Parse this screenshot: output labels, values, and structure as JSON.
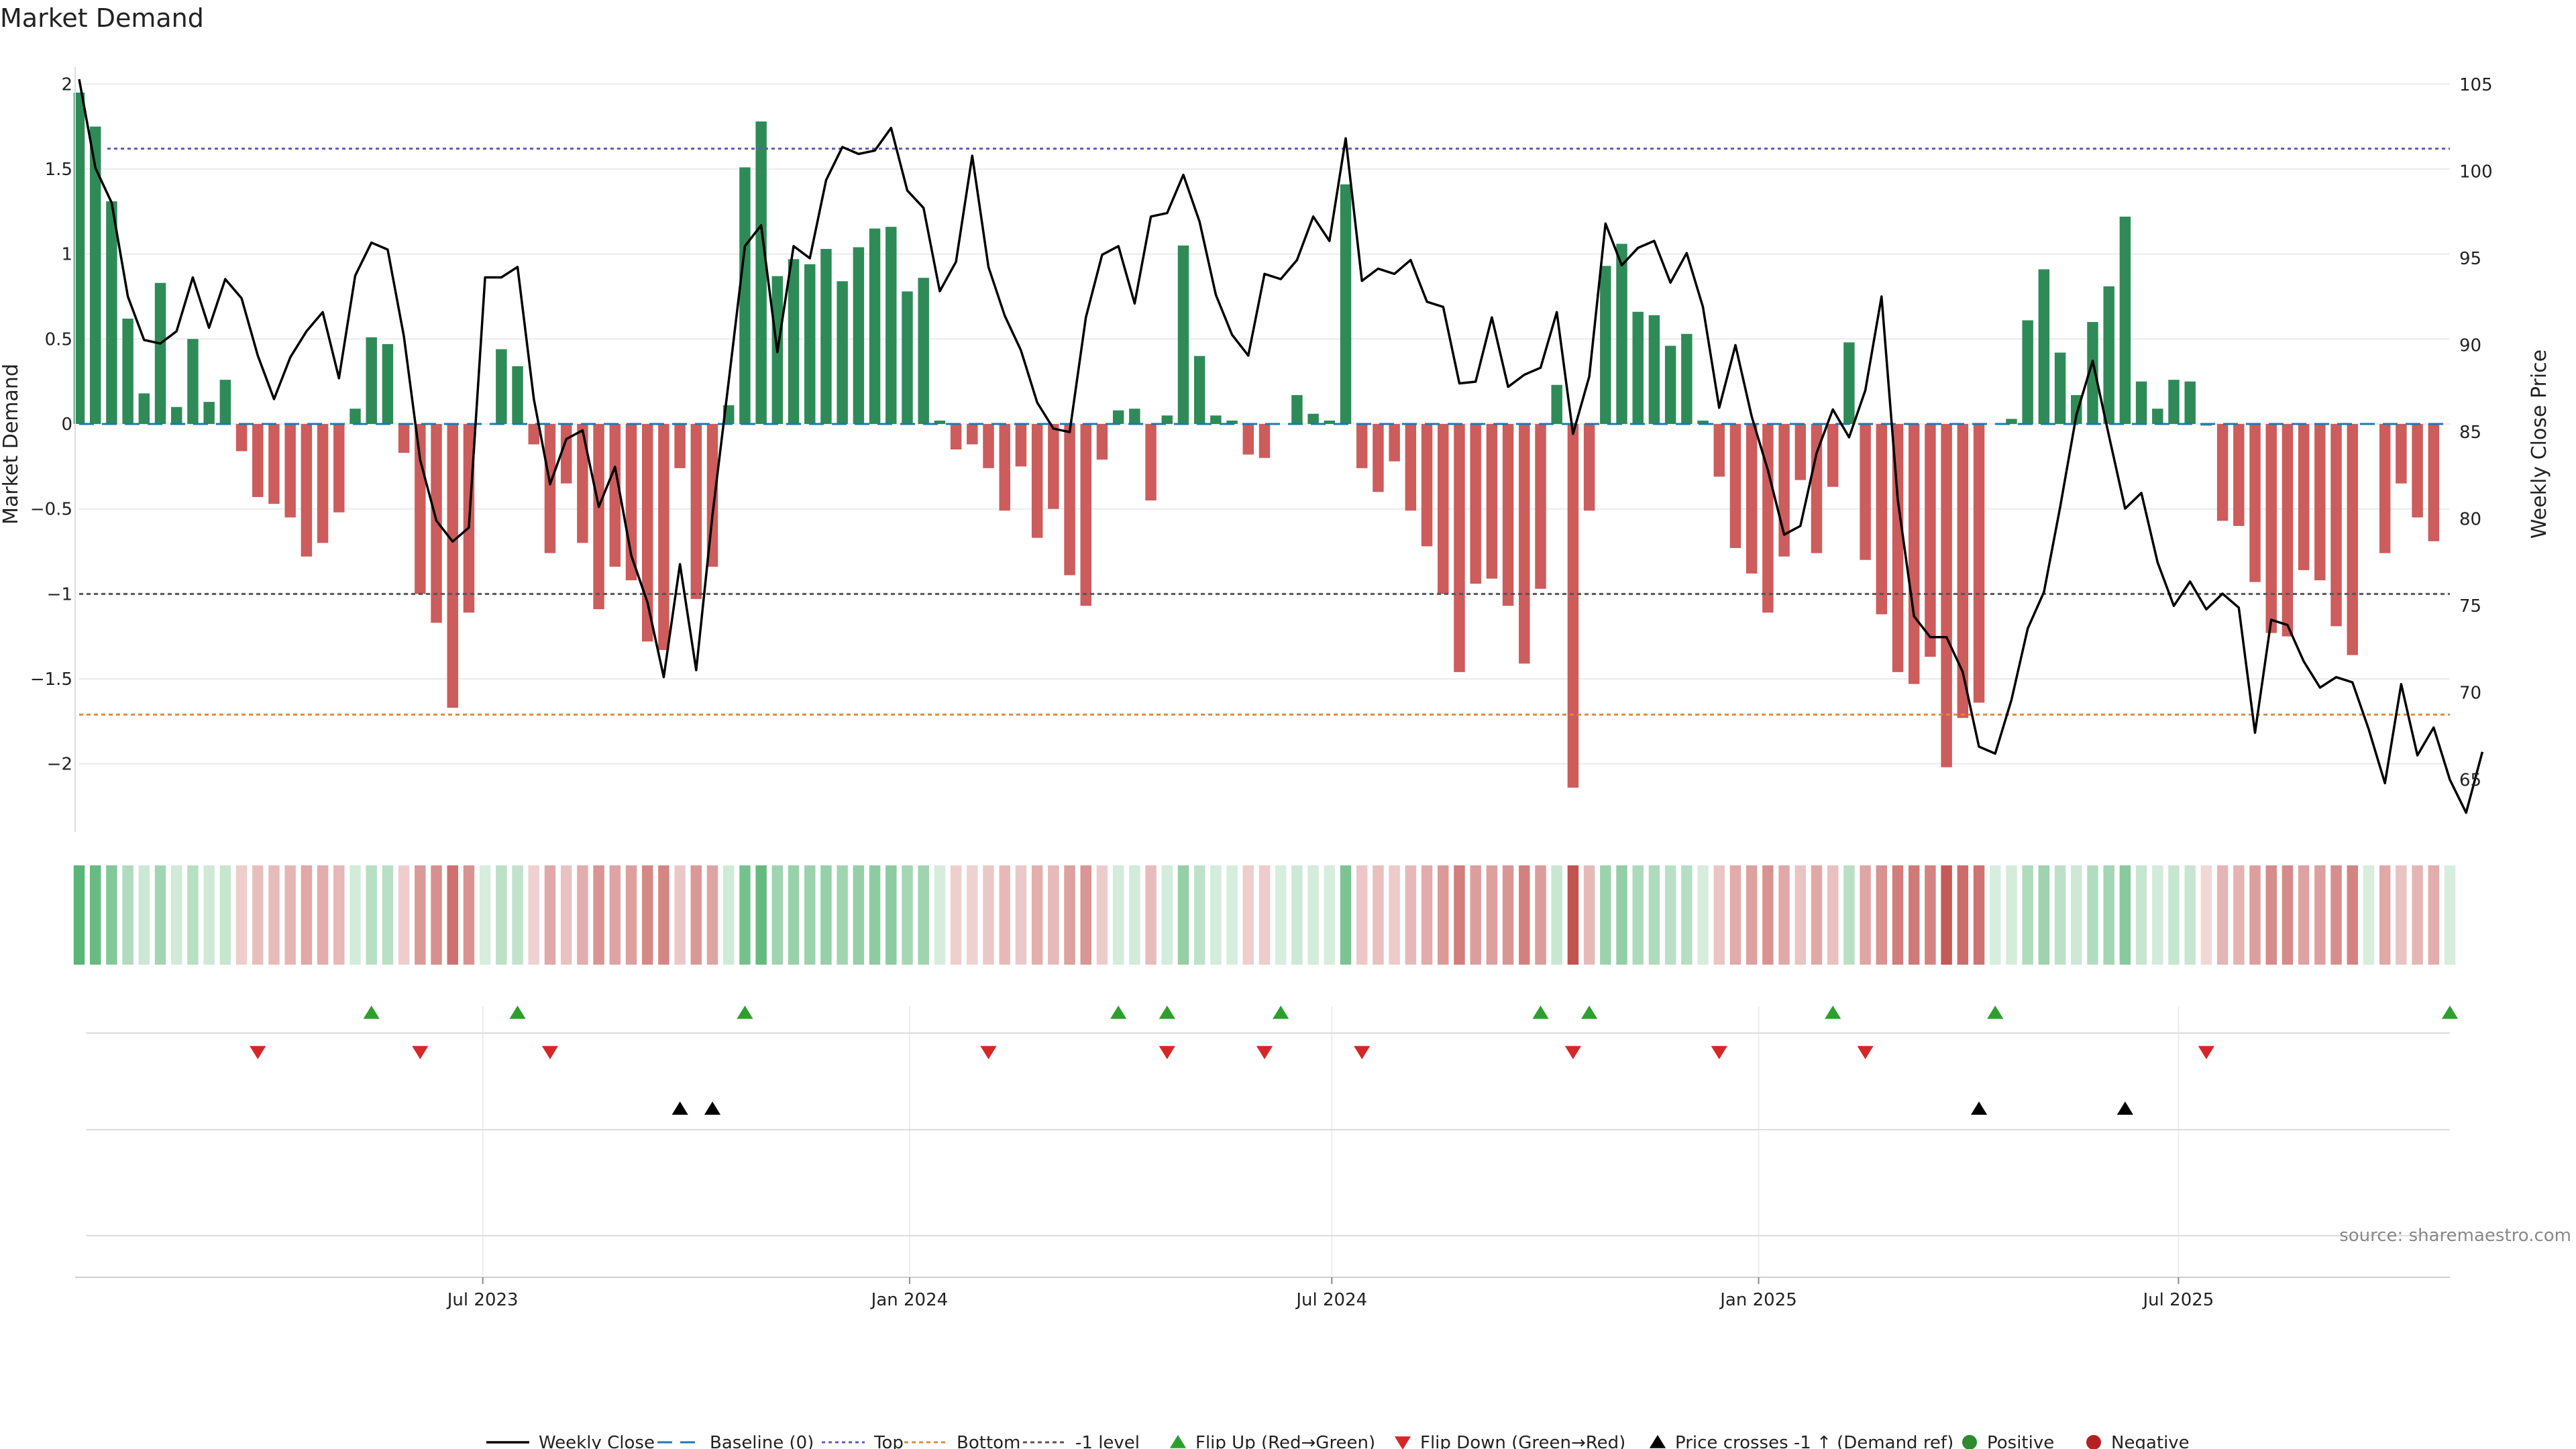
{
  "title": "Market Demand",
  "source_label": "source: sharemaestro.com",
  "chart_data": {
    "type": "bar+line",
    "ylabel_left": "Market Demand",
    "ylabel_right": "Weekly Close Price",
    "ylim_left": [
      -2.4,
      2.1
    ],
    "ylim_right": [
      62,
      106
    ],
    "yticks_left": [
      2,
      1.5,
      1,
      0.5,
      0,
      -0.5,
      -1,
      -1.5,
      -2
    ],
    "yticks_left_labels": [
      "2",
      "1.5",
      "1",
      "0.5",
      "0",
      "−0.5",
      "−1",
      "−1.5",
      "−2"
    ],
    "yticks_right": [
      105,
      100,
      95,
      90,
      85,
      80,
      75,
      70,
      65
    ],
    "x_start": "2023-01-08",
    "x_end": "2025-10-26",
    "xticks": [
      {
        "date": "2023-07-01",
        "label": "Jul 2023"
      },
      {
        "date": "2024-01-01",
        "label": "Jan 2024"
      },
      {
        "date": "2024-07-01",
        "label": "Jul 2024"
      },
      {
        "date": "2025-01-01",
        "label": "Jan 2025"
      },
      {
        "date": "2025-07-01",
        "label": "Jul 2025"
      }
    ],
    "levels": {
      "top": 1.62,
      "bottom": -1.71,
      "minus_one": -1.0,
      "baseline": 0
    },
    "colors": {
      "positive": "#2e8b57",
      "negative": "#cd5c5c",
      "price": "#000000",
      "top": "#5b5bb8",
      "bottom": "#e08a3c",
      "minus_one": "#555555",
      "baseline": "#1f77b4",
      "flip_up": "#2ca02c",
      "flip_down": "#d62728"
    },
    "series": [
      {
        "name": "Market Demand",
        "values": [
          1.95,
          1.75,
          1.31,
          0.62,
          0.18,
          0.83,
          0.1,
          0.5,
          0.13,
          0.26,
          -0.16,
          -0.43,
          -0.47,
          -0.55,
          -0.78,
          -0.7,
          -0.52,
          0.09,
          0.51,
          0.47,
          -0.17,
          -1.0,
          -1.17,
          -1.67,
          -1.11,
          0,
          0.44,
          0.34,
          -0.12,
          -0.76,
          -0.35,
          -0.7,
          -1.09,
          -0.84,
          -0.92,
          -1.28,
          -1.33,
          -0.26,
          -1.03,
          -0.84,
          0.11,
          1.51,
          1.78,
          0.87,
          0.97,
          0.94,
          1.03,
          0.84,
          1.04,
          1.15,
          1.16,
          0.78,
          0.86,
          0.02,
          -0.15,
          -0.12,
          -0.26,
          -0.51,
          -0.25,
          -0.67,
          -0.5,
          -0.89,
          -1.07,
          -0.21,
          0.08,
          0.09,
          -0.45,
          0.05,
          1.05,
          0.4,
          0.05,
          0.02,
          -0.18,
          -0.2,
          0.0,
          0.17,
          0.06,
          0.02,
          1.41,
          -0.26,
          -0.4,
          -0.22,
          -0.51,
          -0.72,
          -1.0,
          -1.46,
          -0.94,
          -0.91,
          -1.07,
          -1.41,
          -0.97,
          0.23,
          -2.14,
          -0.51,
          0.93,
          1.06,
          0.66,
          0.64,
          0.46,
          0.53,
          0.02,
          -0.31,
          -0.73,
          -0.88,
          -1.11,
          -0.78,
          -0.33,
          -0.76,
          -0.37,
          0.48,
          -0.8,
          -1.12,
          -1.46,
          -1.53,
          -1.37,
          -2.02,
          -1.73,
          -1.64,
          0.0,
          0.03,
          0.61,
          0.91,
          0.42,
          0.17,
          0.6,
          0.81,
          1.22,
          0.25,
          0.09,
          0.26,
          0.25,
          -0.01,
          -0.57,
          -0.6,
          -0.93,
          -1.23,
          -1.25,
          -0.86,
          -0.92,
          -1.19,
          -1.36,
          0.0,
          -0.76,
          -0.35,
          -0.55,
          -0.69,
          0.0
        ]
      },
      {
        "name": "Weekly Close",
        "values": [
          105.3,
          100.2,
          98.2,
          92.8,
          90.3,
          90.1,
          90.8,
          93.9,
          91.0,
          93.8,
          92.7,
          89.4,
          86.9,
          89.3,
          90.8,
          91.9,
          88.1,
          94.0,
          95.9,
          95.5,
          90.5,
          83.4,
          79.9,
          78.7,
          79.5,
          93.9,
          93.9,
          94.5,
          86.9,
          82.0,
          84.6,
          85.1,
          80.7,
          83.0,
          77.9,
          75.2,
          70.9,
          77.4,
          71.3,
          80.2,
          87.9,
          95.7,
          96.9,
          89.6,
          95.7,
          95.0,
          99.5,
          101.4,
          101.0,
          101.2,
          102.5,
          98.9,
          97.9,
          93.1,
          94.8,
          100.9,
          94.5,
          91.7,
          89.7,
          86.7,
          85.2,
          85.0,
          91.6,
          95.2,
          95.7,
          92.4,
          97.4,
          97.6,
          99.8,
          97.1,
          92.9,
          90.6,
          89.4,
          94.1,
          93.8,
          94.9,
          97.4,
          96.0,
          101.9,
          93.7,
          94.4,
          94.1,
          94.9,
          92.5,
          92.2,
          87.8,
          87.9,
          91.6,
          87.6,
          88.3,
          88.7,
          91.9,
          84.9,
          88.2,
          97.0,
          94.6,
          95.6,
          96.0,
          93.6,
          95.3,
          92.2,
          86.4,
          90.0,
          85.9,
          82.8,
          79.1,
          79.6,
          83.8,
          86.3,
          84.7,
          87.4,
          92.8,
          81.1,
          74.4,
          73.2,
          73.2,
          71.2,
          66.9,
          66.5,
          69.6,
          73.7,
          75.8,
          80.7,
          86.0,
          89.1,
          84.8,
          80.6,
          81.5,
          77.5,
          75.0,
          76.4,
          74.8,
          75.7,
          74.9,
          67.7,
          74.2,
          73.9,
          71.8,
          70.3,
          70.9,
          70.6,
          67.9,
          64.8,
          70.5,
          66.4,
          68.0,
          65.0,
          63.1,
          66.6
        ]
      }
    ],
    "flip_up": [
      "2023-05-14",
      "2023-07-16",
      "2023-10-22",
      "2024-03-31",
      "2024-04-21",
      "2024-06-09",
      "2024-09-29",
      "2024-10-20",
      "2025-02-02",
      "2025-04-13",
      "2025-10-26"
    ],
    "flip_down": [
      "2023-03-26",
      "2023-06-04",
      "2023-07-30",
      "2024-02-04",
      "2024-04-21",
      "2024-06-02",
      "2024-07-14",
      "2024-10-13",
      "2024-12-15",
      "2025-02-16",
      "2025-07-13"
    ],
    "price_crosses": [
      "2023-09-24",
      "2023-10-08",
      "2025-04-06",
      "2025-06-08"
    ],
    "legend": {
      "position": "bottom",
      "items": [
        {
          "label": "Weekly Close",
          "key": "price"
        },
        {
          "label": "Baseline (0)",
          "key": "baseline"
        },
        {
          "label": "Top",
          "key": "top"
        },
        {
          "label": "Bottom",
          "key": "bottom"
        },
        {
          "label": "-1 level",
          "key": "minus_one"
        },
        {
          "label": "Flip Up (Red→Green)",
          "key": "flip_up"
        },
        {
          "label": "Flip Down (Green→Red)",
          "key": "flip_down"
        },
        {
          "label": "Price crosses -1 ↑ (Demand ref)",
          "key": "cross"
        },
        {
          "label": "Positive",
          "key": "positive"
        },
        {
          "label": "Negative",
          "key": "negative"
        }
      ]
    }
  }
}
